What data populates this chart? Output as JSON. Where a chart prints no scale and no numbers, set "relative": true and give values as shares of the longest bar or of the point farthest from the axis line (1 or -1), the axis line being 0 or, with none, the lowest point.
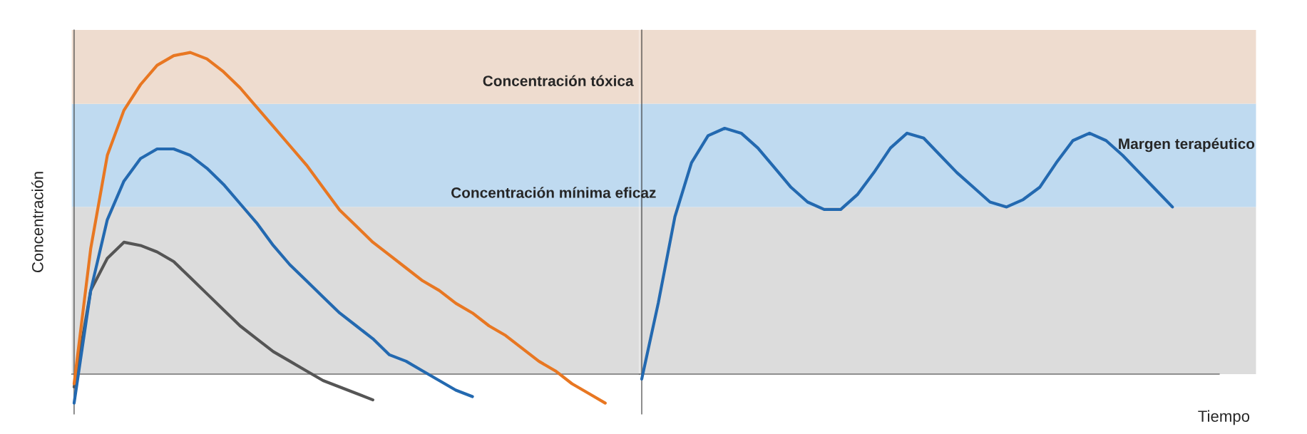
{
  "chart_data": [
    {
      "type": "line",
      "relative": true,
      "ylabel": "Concentración",
      "marker": "none",
      "line_style": "solid",
      "categories": [
        null,
        null,
        null,
        null,
        null,
        null,
        null,
        null,
        null,
        null,
        null,
        null,
        null,
        null,
        null,
        null,
        null,
        null,
        null,
        null,
        null,
        null,
        null,
        null,
        null,
        null,
        null,
        null,
        null,
        null,
        null,
        null,
        null,
        null,
        null
      ],
      "series": [
        {
          "color": "#555555",
          "values": [
            -0.04,
            0.26,
            0.36,
            0.41,
            0.4,
            0.38,
            0.35,
            0.3,
            0.25,
            0.2,
            0.15,
            0.11,
            0.07,
            0.04,
            0.01,
            -0.02,
            -0.04,
            -0.06,
            -0.08,
            null,
            null,
            null,
            null,
            null,
            null,
            null,
            null,
            null,
            null,
            null,
            null,
            null,
            null,
            null,
            null
          ]
        },
        {
          "color": "#2369b0",
          "values": [
            -0.09,
            0.26,
            0.48,
            0.6,
            0.67,
            0.7,
            0.7,
            0.68,
            0.64,
            0.59,
            0.53,
            0.47,
            0.4,
            0.34,
            0.29,
            0.24,
            0.19,
            0.15,
            0.11,
            0.06,
            0.04,
            0.01,
            -0.02,
            -0.05,
            -0.07,
            null,
            null,
            null,
            null,
            null,
            null,
            null,
            null,
            null,
            null
          ]
        },
        {
          "color": "#e87722",
          "values": [
            -0.03,
            0.39,
            0.68,
            0.82,
            0.9,
            0.96,
            0.99,
            1.0,
            0.98,
            0.94,
            0.89,
            0.83,
            0.77,
            0.71,
            0.65,
            0.58,
            0.51,
            0.46,
            0.41,
            0.37,
            0.33,
            0.29,
            0.26,
            0.22,
            0.19,
            0.15,
            0.12,
            0.08,
            0.04,
            0.01,
            -0.03,
            -0.06,
            -0.09,
            null,
            null
          ]
        }
      ],
      "bands": [
        {
          "axis": "y",
          "from": 0,
          "to": 0.52,
          "color": "#dcdcdc"
        },
        {
          "axis": "y",
          "from": 0.52,
          "to": 0.84,
          "color": "#bfdaf0"
        },
        {
          "axis": "y",
          "from": 0.84,
          "to": 1.07,
          "label": "Concentración tóxica",
          "color": "#eedccf"
        }
      ],
      "annotations": [
        {
          "text": "Concentración mínima eficaz",
          "y": 0.52
        }
      ]
    },
    {
      "type": "line",
      "relative": true,
      "xlabel": "Tiempo",
      "marker": "none",
      "line_style": "solid",
      "categories": [
        null,
        null,
        null,
        null,
        null,
        null,
        null,
        null,
        null,
        null,
        null,
        null,
        null,
        null,
        null,
        null,
        null,
        null,
        null,
        null,
        null,
        null,
        null,
        null,
        null,
        null,
        null,
        null,
        null,
        null,
        null,
        null,
        null,
        null,
        null,
        null,
        null,
        null
      ],
      "series": [
        {
          "color": "#2369b0",
          "values": [
            -0.02,
            0.29,
            0.64,
            0.86,
            0.97,
            1.0,
            0.98,
            0.92,
            0.84,
            0.76,
            0.7,
            0.67,
            0.67,
            0.73,
            0.82,
            0.92,
            0.98,
            0.96,
            0.89,
            0.82,
            0.76,
            0.7,
            0.68,
            0.71,
            0.76,
            0.86,
            0.95,
            0.98,
            0.95,
            0.89,
            0.82,
            0.75,
            0.68,
            null,
            null,
            null,
            null,
            null
          ]
        }
      ],
      "bands": [
        {
          "axis": "y",
          "from": 0,
          "to": 0.68,
          "color": "#dcdcdc"
        },
        {
          "axis": "y",
          "from": 0.68,
          "to": 1.1,
          "label": "Margen terapéutico",
          "color": "#bfdaf0"
        },
        {
          "axis": "y",
          "from": 1.1,
          "to": 1.4,
          "color": "#eedccf"
        }
      ]
    }
  ]
}
